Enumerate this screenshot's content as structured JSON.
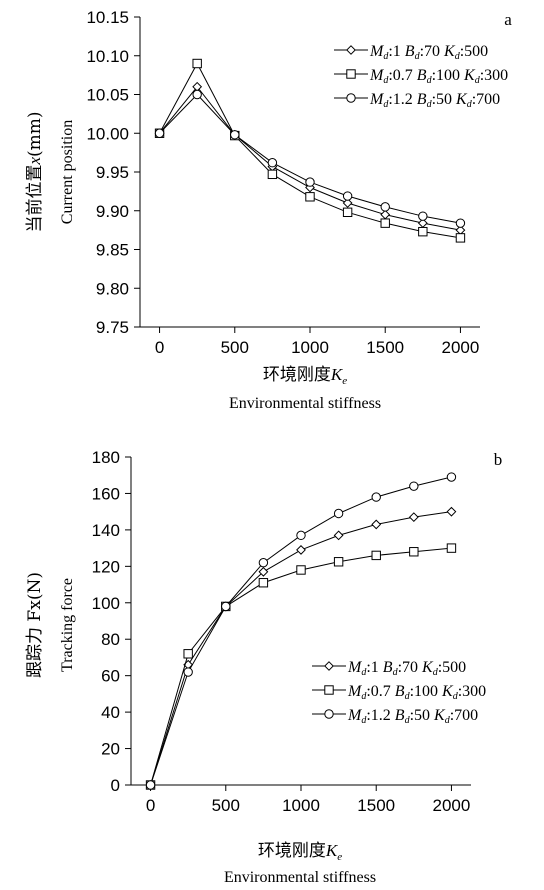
{
  "chart_data": [
    {
      "type": "line",
      "panel_label": "a",
      "ylabel_cn": "当前位置",
      "ylabel_var": "x",
      "ylabel_unit": "(mm)",
      "ylabel_en": "Current position",
      "xlabel_cn": "环境刚度",
      "xlabel_var": "K",
      "xlabel_var_sub": "e",
      "xlabel_en": "Environmental stiffness",
      "xlim": [
        -130,
        2130
      ],
      "ylim": [
        9.75,
        10.15
      ],
      "x_ticks": [
        0,
        500,
        1000,
        1500,
        2000
      ],
      "y_ticks": [
        9.75,
        9.8,
        9.85,
        9.9,
        9.95,
        10.0,
        10.05,
        10.1,
        10.15
      ],
      "y_tick_labels": [
        "9.75",
        "9.80",
        "9.85",
        "9.90",
        "9.95",
        "10.00",
        "10.05",
        "10.10",
        "10.15"
      ],
      "x_tick_labels": [
        "0",
        "500",
        "1000",
        "1500",
        "2000"
      ],
      "grid": false,
      "legend_position": "top-right",
      "x": [
        0,
        250,
        500,
        750,
        1000,
        1250,
        1500,
        1750,
        2000
      ],
      "series": [
        {
          "name": "M_d:1 B_d:70 K_d:500",
          "marker": "diamond",
          "values": [
            10.0,
            10.06,
            9.998,
            9.957,
            9.93,
            9.91,
            9.895,
            9.884,
            9.875
          ]
        },
        {
          "name": "M_d:0.7 B_d:100 K_d:300",
          "marker": "square",
          "values": [
            10.0,
            10.09,
            9.997,
            9.947,
            9.918,
            9.898,
            9.884,
            9.873,
            9.865
          ]
        },
        {
          "name": "M_d:1.2 B_d:50 K_d:700",
          "marker": "circle",
          "values": [
            10.0,
            10.05,
            9.998,
            9.962,
            9.937,
            9.919,
            9.905,
            9.893,
            9.884
          ]
        }
      ]
    },
    {
      "type": "line",
      "panel_label": "b",
      "ylabel_cn": "跟踪力 Fx(N)",
      "ylabel_en": "Tracking force",
      "xlabel_cn": "环境刚度",
      "xlabel_var": "K",
      "xlabel_var_sub": "e",
      "xlabel_en": "Environmental stiffness",
      "xlim": [
        -130,
        2130
      ],
      "ylim": [
        0,
        180
      ],
      "x_ticks": [
        0,
        500,
        1000,
        1500,
        2000
      ],
      "y_ticks": [
        0,
        20,
        40,
        60,
        80,
        100,
        120,
        140,
        160,
        180
      ],
      "y_tick_labels": [
        "0",
        "20",
        "40",
        "60",
        "80",
        "100",
        "120",
        "140",
        "160",
        "180"
      ],
      "x_tick_labels": [
        "0",
        "500",
        "1000",
        "1500",
        "2000"
      ],
      "grid": false,
      "legend_position": "center-right",
      "x": [
        0,
        250,
        500,
        750,
        1000,
        1250,
        1500,
        1750,
        2000
      ],
      "series": [
        {
          "name": "M_d:1 B_d:70 K_d:500",
          "marker": "diamond",
          "values": [
            0,
            66,
            98,
            117,
            129,
            137,
            143,
            147,
            150
          ]
        },
        {
          "name": "M_d:0.7 B_d:100 K_d:300",
          "marker": "square",
          "values": [
            0,
            72,
            98,
            111,
            118,
            122.5,
            126,
            128,
            130
          ]
        },
        {
          "name": "M_d:1.2 B_d:50 K_d:700",
          "marker": "circle",
          "values": [
            0,
            62,
            98,
            122,
            137,
            149,
            158,
            164,
            169
          ]
        }
      ]
    }
  ],
  "legend_entries": [
    {
      "M_sym": "M",
      "d": "d",
      "M_val": ":1",
      "B_sym": "B",
      "B_val": ":70",
      "K_sym": "K",
      "K_val": ":500"
    },
    {
      "M_sym": "M",
      "d": "d",
      "M_val": ":0.7",
      "B_sym": "B",
      "B_val": ":100",
      "K_sym": "K",
      "K_val": ":300"
    },
    {
      "M_sym": "M",
      "d": "d",
      "M_val": ":1.2",
      "B_sym": "B",
      "B_val": ":50",
      "K_sym": "K",
      "K_val": ":700"
    }
  ]
}
